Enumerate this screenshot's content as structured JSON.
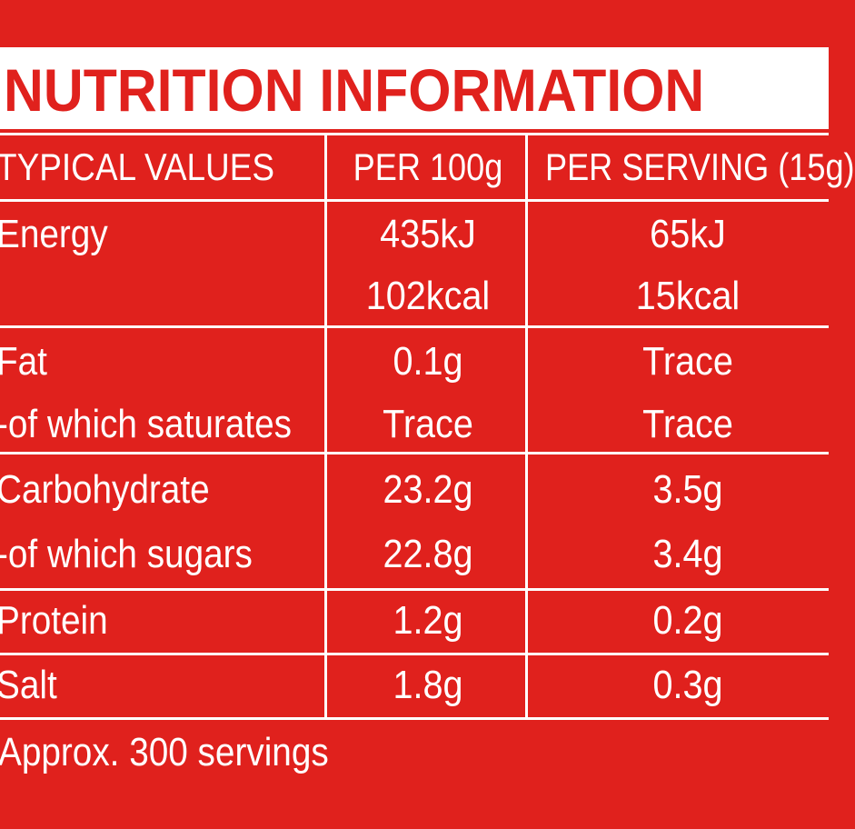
{
  "title": "NUTRITION INFORMATION",
  "header": {
    "col0": "TYPICAL VALUES",
    "col1": "PER 100g",
    "col2": "PER SERVING (15g)"
  },
  "rows": [
    {
      "label": "Energy",
      "per100": "435kJ",
      "perServing": "65kJ"
    },
    {
      "label": "",
      "per100": "102kcal",
      "perServing": "15kcal"
    },
    {
      "label": "Fat",
      "per100": "0.1g",
      "perServing": "Trace"
    },
    {
      "label": "-of which saturates",
      "per100": "Trace",
      "perServing": "Trace"
    },
    {
      "label": "Carbohydrate",
      "per100": "23.2g",
      "perServing": "3.5g"
    },
    {
      "label": "-of which sugars",
      "per100": "22.8g",
      "perServing": "3.4g"
    },
    {
      "label": "Protein",
      "per100": "1.2g",
      "perServing": "0.2g"
    },
    {
      "label": "Salt",
      "per100": "1.8g",
      "perServing": "0.3g"
    }
  ],
  "footer": "Approx. 300 servings",
  "colors": {
    "background": "#e0211d",
    "text": "#ffffff"
  }
}
